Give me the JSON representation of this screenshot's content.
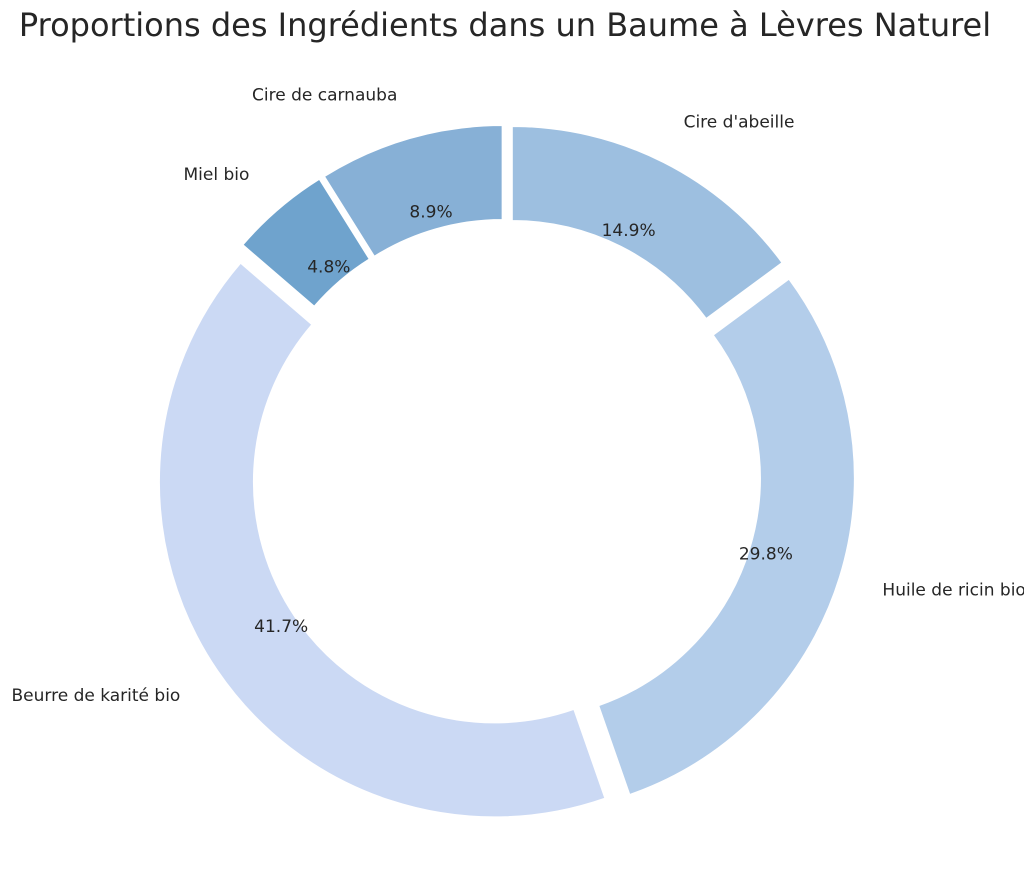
{
  "chart_data": {
    "type": "pie",
    "variant": "donut",
    "title": "Proportions des Ingrédients dans un Baume à Lèvres Naturel",
    "start_angle_deg": 90,
    "direction": "clockwise",
    "slices": [
      {
        "label": "Cire d'abeille",
        "value": 14.9,
        "pct_text": "14.9%",
        "color": "#9dbfe0",
        "exploded": true
      },
      {
        "label": "Huile de ricin bio",
        "value": 29.8,
        "pct_text": "29.8%",
        "color": "#b3cdea",
        "exploded": true
      },
      {
        "label": "Beurre de karité bio",
        "value": 41.7,
        "pct_text": "41.7%",
        "color": "#cbd9f4",
        "exploded": true
      },
      {
        "label": "Miel bio",
        "value": 4.8,
        "pct_text": "4.8%",
        "color": "#6fa3cd",
        "exploded": true
      },
      {
        "label": "Cire de carnauba",
        "value": 8.9,
        "pct_text": "8.9%",
        "color": "#87b0d6",
        "exploded": true
      }
    ],
    "legend": "none"
  }
}
